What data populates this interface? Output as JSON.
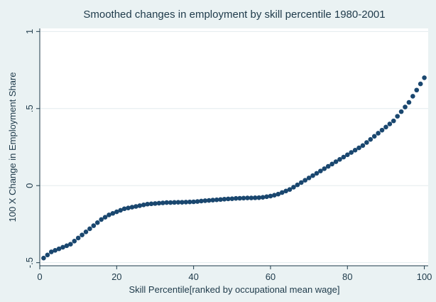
{
  "colors": {
    "outer_background": "#eaf2f3",
    "plot_background": "#ffffff",
    "marker": "#1a476f",
    "text": "#1e3a4a"
  },
  "chart_data": {
    "type": "scatter",
    "title": "Smoothed changes in employment by skill percentile 1980-2001",
    "xlabel": "Skill Percentile[ranked by occupational mean wage]",
    "ylabel": "100 X Change in Employment Share",
    "xlim": [
      0,
      101
    ],
    "ylim": [
      -0.52,
      1.02
    ],
    "xticks": [
      0,
      20,
      40,
      60,
      80,
      100
    ],
    "xtick_labels": [
      "0",
      "20",
      "40",
      "60",
      "80",
      "100"
    ],
    "yticks": [
      -0.5,
      0,
      0.5,
      1
    ],
    "ytick_labels": [
      "-.5",
      "0",
      ".5",
      "1"
    ],
    "grid": "horizontal",
    "marker": "filled circle",
    "x": [
      1,
      2,
      3,
      4,
      5,
      6,
      7,
      8,
      9,
      10,
      11,
      12,
      13,
      14,
      15,
      16,
      17,
      18,
      19,
      20,
      21,
      22,
      23,
      24,
      25,
      26,
      27,
      28,
      29,
      30,
      31,
      32,
      33,
      34,
      35,
      36,
      37,
      38,
      39,
      40,
      41,
      42,
      43,
      44,
      45,
      46,
      47,
      48,
      49,
      50,
      51,
      52,
      53,
      54,
      55,
      56,
      57,
      58,
      59,
      60,
      61,
      62,
      63,
      64,
      65,
      66,
      67,
      68,
      69,
      70,
      71,
      72,
      73,
      74,
      75,
      76,
      77,
      78,
      79,
      80,
      81,
      82,
      83,
      84,
      85,
      86,
      87,
      88,
      89,
      90,
      91,
      92,
      93,
      94,
      95,
      96,
      97,
      98,
      99,
      100
    ],
    "y": [
      -0.47,
      -0.45,
      -0.43,
      -0.42,
      -0.41,
      -0.4,
      -0.39,
      -0.38,
      -0.36,
      -0.34,
      -0.32,
      -0.3,
      -0.28,
      -0.26,
      -0.24,
      -0.22,
      -0.205,
      -0.19,
      -0.18,
      -0.17,
      -0.16,
      -0.15,
      -0.145,
      -0.14,
      -0.135,
      -0.13,
      -0.125,
      -0.12,
      -0.118,
      -0.116,
      -0.114,
      -0.112,
      -0.11,
      -0.11,
      -0.109,
      -0.108,
      -0.108,
      -0.107,
      -0.106,
      -0.105,
      -0.103,
      -0.1,
      -0.098,
      -0.096,
      -0.094,
      -0.092,
      -0.09,
      -0.088,
      -0.086,
      -0.085,
      -0.083,
      -0.082,
      -0.081,
      -0.08,
      -0.08,
      -0.079,
      -0.078,
      -0.076,
      -0.072,
      -0.068,
      -0.062,
      -0.055,
      -0.045,
      -0.035,
      -0.025,
      -0.01,
      0.005,
      0.02,
      0.035,
      0.05,
      0.065,
      0.08,
      0.095,
      0.11,
      0.125,
      0.14,
      0.155,
      0.17,
      0.185,
      0.2,
      0.215,
      0.23,
      0.245,
      0.26,
      0.28,
      0.3,
      0.32,
      0.34,
      0.36,
      0.38,
      0.4,
      0.42,
      0.45,
      0.48,
      0.51,
      0.54,
      0.58,
      0.62,
      0.66,
      0.7
    ]
  }
}
